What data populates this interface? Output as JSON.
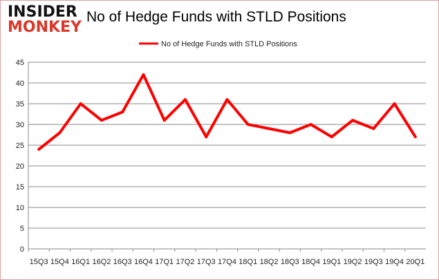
{
  "logo": {
    "line1": "INSIDER",
    "line2": "MONKEY"
  },
  "chart_data": {
    "type": "line",
    "title": "No of Hedge Funds with STLD Positions",
    "categories": [
      "15Q3",
      "15Q4",
      "16Q1",
      "16Q2",
      "16Q3",
      "16Q4",
      "17Q1",
      "17Q2",
      "17Q3",
      "17Q4",
      "18Q1",
      "18Q2",
      "18Q3",
      "18Q4",
      "19Q1",
      "19Q2",
      "19Q3",
      "19Q4",
      "20Q1"
    ],
    "series": [
      {
        "name": "No of Hedge Funds with STLD Positions",
        "color": "#ff0000",
        "values": [
          24,
          28,
          35,
          31,
          33,
          42,
          31,
          36,
          27,
          36,
          30,
          29,
          28,
          30,
          27,
          31,
          29,
          35,
          27
        ]
      }
    ],
    "ylim": [
      0,
      45
    ],
    "yticks": [
      0,
      5,
      10,
      15,
      20,
      25,
      30,
      35,
      40,
      45
    ],
    "grid": true,
    "legend": "top-center"
  }
}
